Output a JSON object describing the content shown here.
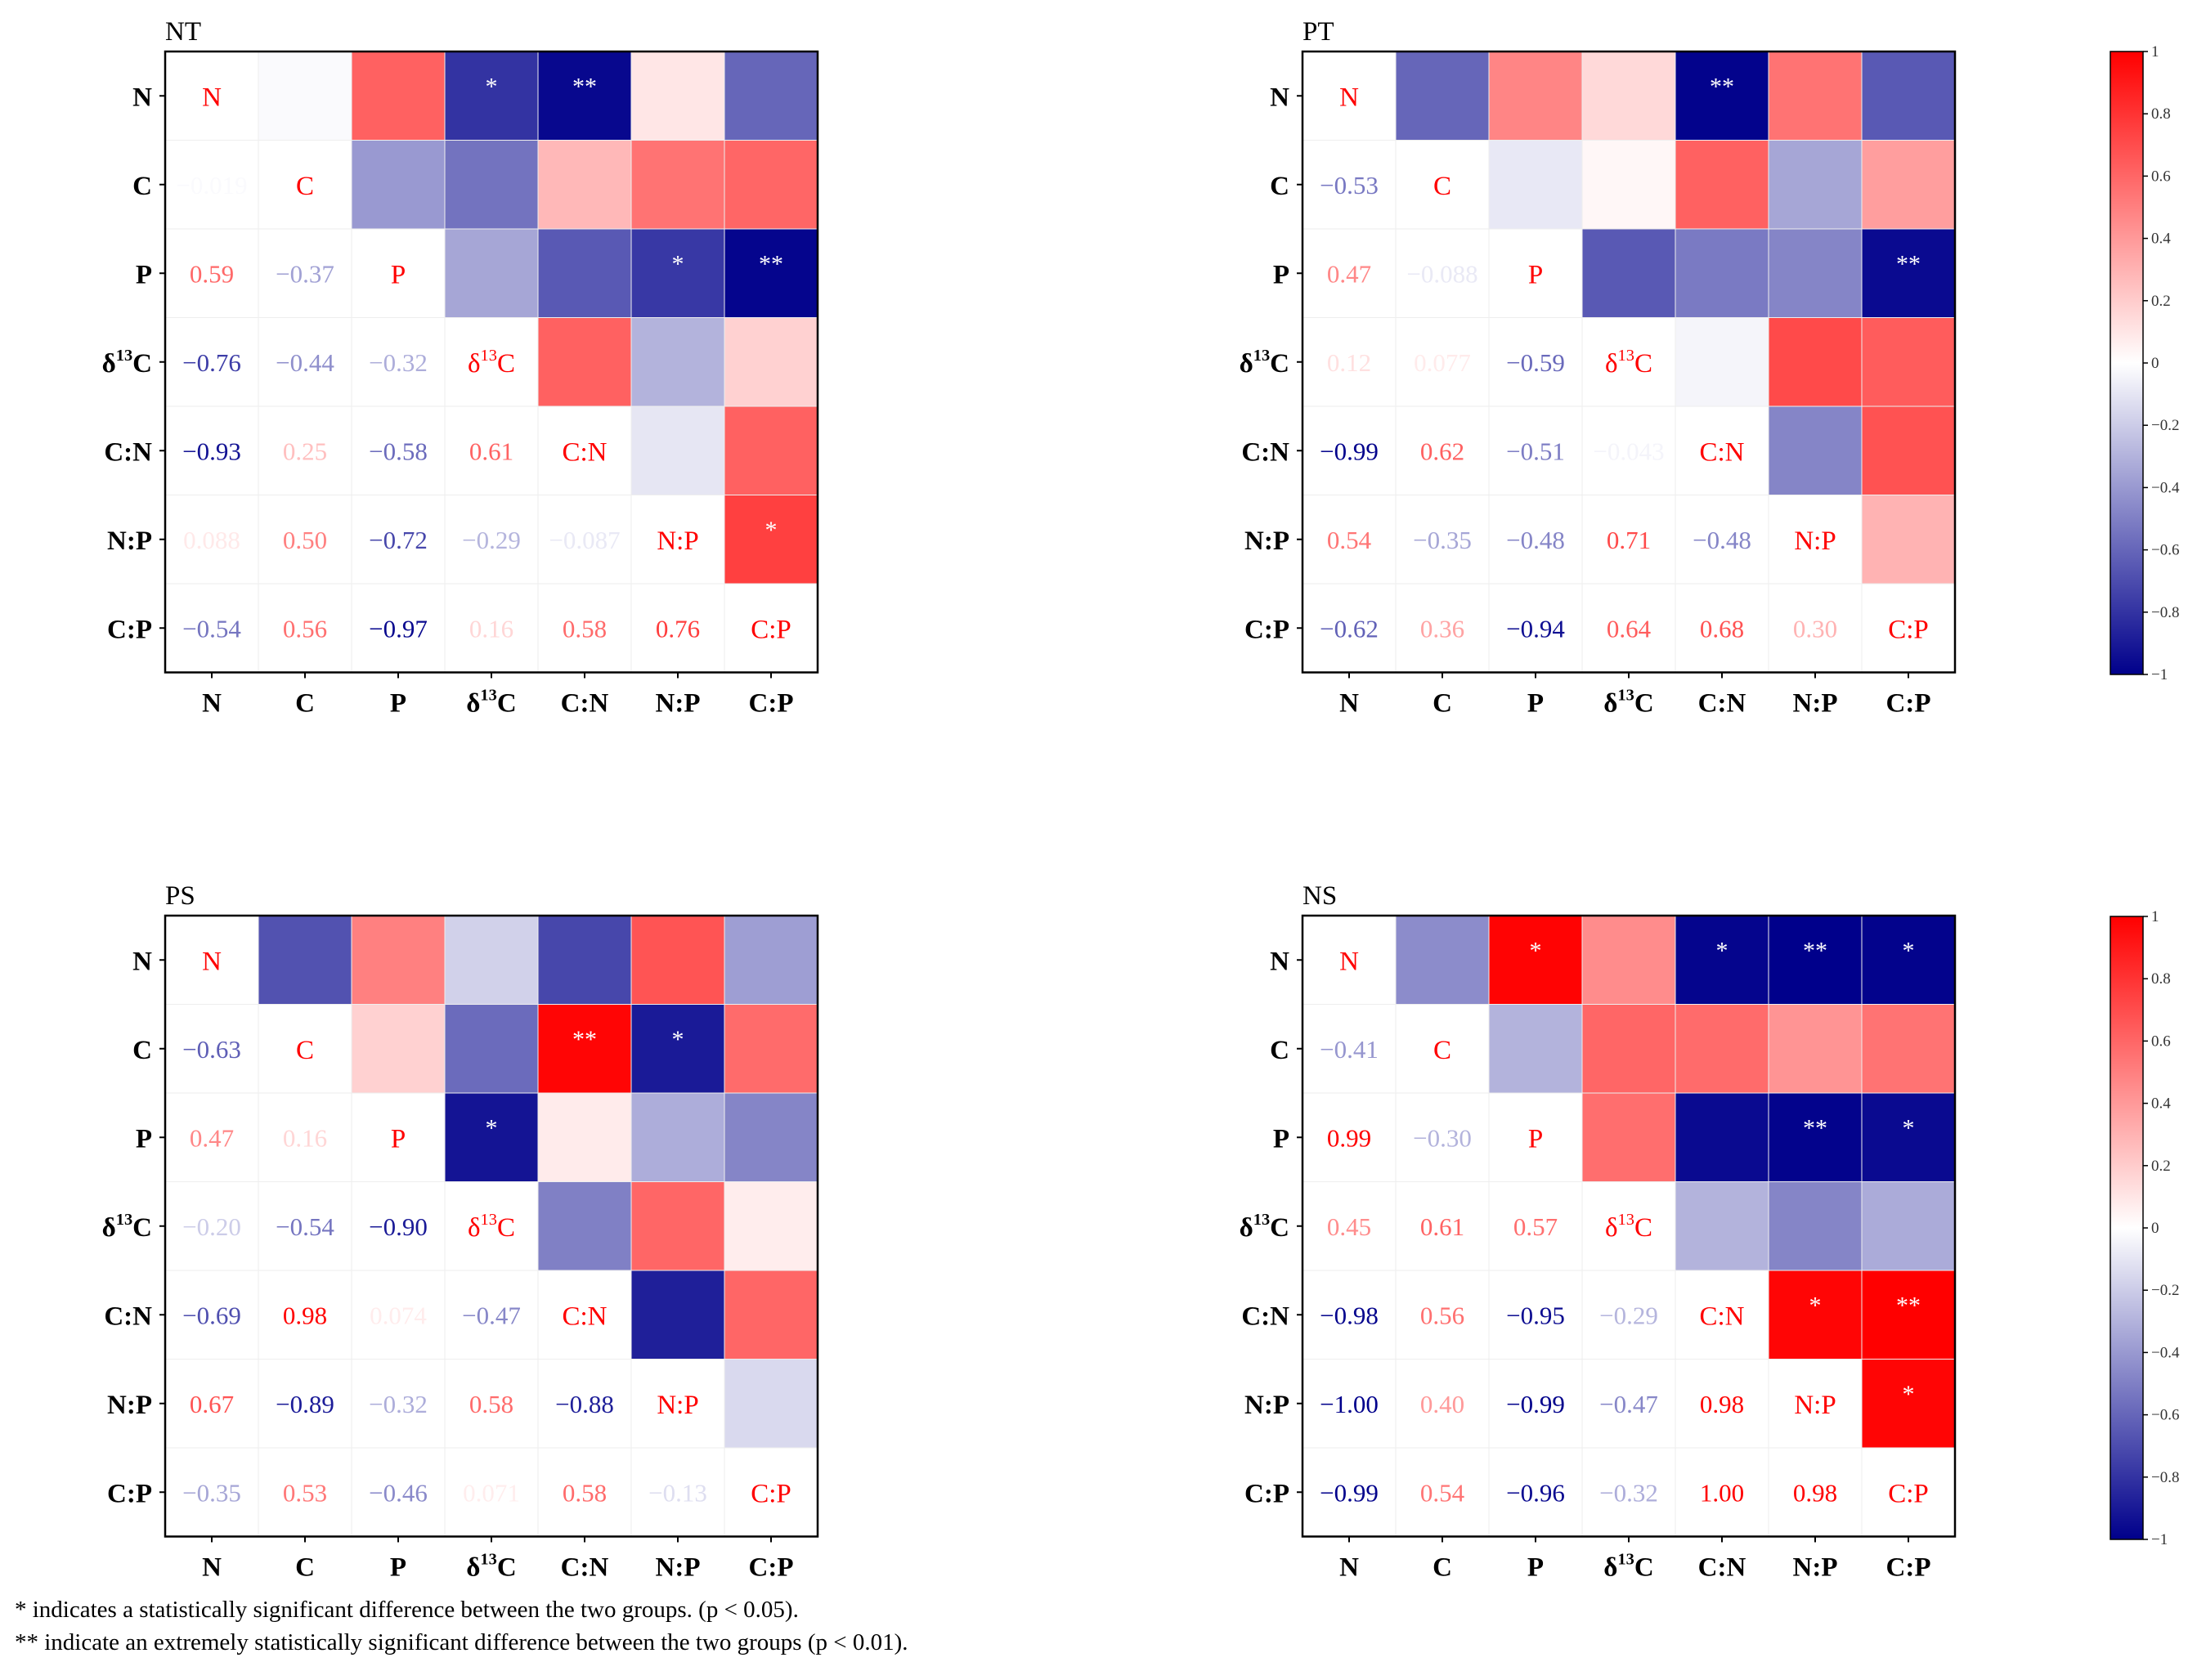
{
  "chart_data": {
    "type": "heatmap",
    "variables": [
      "N",
      "C",
      "P",
      "δ13C",
      "C:N",
      "N:P",
      "C:P"
    ],
    "color_scale": {
      "min": -1,
      "max": 1,
      "low": "#00008b",
      "mid": "#ffffff",
      "high": "#ff0000",
      "ticks": [
        {
          "value": 1,
          "label": "1"
        },
        {
          "value": 0.8,
          "label": "0.8"
        },
        {
          "value": 0.6,
          "label": "0.6"
        },
        {
          "value": 0.4,
          "label": "0.4"
        },
        {
          "value": 0.2,
          "label": "0.2"
        },
        {
          "value": 0,
          "label": "0"
        },
        {
          "value": -0.2,
          "label": "−0.2"
        },
        {
          "value": -0.4,
          "label": "−0.4"
        },
        {
          "value": -0.6,
          "label": "−0.6"
        },
        {
          "value": -0.8,
          "label": "−0.8"
        },
        {
          "value": -1,
          "label": "−1"
        }
      ]
    },
    "panels": [
      {
        "title": "NT",
        "lower_labels": [
          [
            "",
            "",
            "",
            "",
            "",
            "",
            ""
          ],
          [
            "−0.019",
            "",
            "",
            "",
            "",
            "",
            ""
          ],
          [
            "0.59",
            "−0.37",
            "",
            "",
            "",
            "",
            ""
          ],
          [
            "−0.76",
            "−0.44",
            "−0.32",
            "",
            "",
            "",
            ""
          ],
          [
            "−0.93",
            "0.25",
            "−0.58",
            "0.61",
            "",
            "",
            ""
          ],
          [
            "0.088",
            "0.50",
            "−0.72",
            "−0.29",
            "−0.087",
            "",
            ""
          ],
          [
            "−0.54",
            "0.56",
            "−0.97",
            "0.16",
            "0.58",
            "0.76",
            ""
          ]
        ],
        "upper_values": [
          [
            null,
            -0.02,
            0.62,
            -0.8,
            -0.97,
            0.1,
            -0.6
          ],
          [
            null,
            null,
            -0.4,
            -0.55,
            0.28,
            0.55,
            0.6
          ],
          [
            null,
            null,
            null,
            -0.35,
            -0.65,
            -0.78,
            -0.98
          ],
          [
            null,
            null,
            null,
            null,
            0.62,
            -0.3,
            0.18
          ],
          [
            null,
            null,
            null,
            null,
            null,
            -0.1,
            0.62
          ],
          [
            null,
            null,
            null,
            null,
            null,
            null,
            0.75
          ],
          [
            null,
            null,
            null,
            null,
            null,
            null,
            null
          ]
        ],
        "stars": [
          [
            "",
            "",
            "",
            "*",
            "**",
            "",
            ""
          ],
          [
            "",
            "",
            "",
            "",
            "",
            "",
            ""
          ],
          [
            "",
            "",
            "",
            "",
            "",
            "*",
            "**"
          ],
          [
            "",
            "",
            "",
            "",
            "",
            "",
            ""
          ],
          [
            "",
            "",
            "",
            "",
            "",
            "",
            ""
          ],
          [
            "",
            "",
            "",
            "",
            "",
            "",
            "*"
          ],
          [
            "",
            "",
            "",
            "",
            "",
            "",
            ""
          ]
        ]
      },
      {
        "title": "PT",
        "lower_labels": [
          [
            "",
            "",
            "",
            "",
            "",
            "",
            ""
          ],
          [
            "−0.53",
            "",
            "",
            "",
            "",
            "",
            ""
          ],
          [
            "0.47",
            "−0.088",
            "",
            "",
            "",
            "",
            ""
          ],
          [
            "0.12",
            "0.077",
            "−0.59",
            "",
            "",
            "",
            ""
          ],
          [
            "−0.99",
            "0.62",
            "−0.51",
            "−0.043",
            "",
            "",
            ""
          ],
          [
            "0.54",
            "−0.35",
            "−0.48",
            "0.71",
            "−0.48",
            "",
            ""
          ],
          [
            "−0.62",
            "0.36",
            "−0.94",
            "0.64",
            "0.68",
            "0.30",
            ""
          ]
        ],
        "upper_values": [
          [
            null,
            -0.6,
            0.48,
            0.15,
            -0.99,
            0.55,
            -0.65
          ],
          [
            null,
            null,
            -0.09,
            0.03,
            0.62,
            -0.35,
            0.38
          ],
          [
            null,
            null,
            null,
            -0.65,
            -0.52,
            -0.48,
            -0.96
          ],
          [
            null,
            null,
            null,
            null,
            -0.04,
            0.71,
            0.64
          ],
          [
            null,
            null,
            null,
            null,
            null,
            -0.48,
            0.68
          ],
          [
            null,
            null,
            null,
            null,
            null,
            null,
            0.3
          ],
          [
            null,
            null,
            null,
            null,
            null,
            null,
            null
          ]
        ],
        "stars": [
          [
            "",
            "",
            "",
            "",
            "**",
            "",
            ""
          ],
          [
            "",
            "",
            "",
            "",
            "",
            "",
            ""
          ],
          [
            "",
            "",
            "",
            "",
            "",
            "",
            "**"
          ],
          [
            "",
            "",
            "",
            "",
            "",
            "",
            ""
          ],
          [
            "",
            "",
            "",
            "",
            "",
            "",
            ""
          ],
          [
            "",
            "",
            "",
            "",
            "",
            "",
            ""
          ],
          [
            "",
            "",
            "",
            "",
            "",
            "",
            ""
          ]
        ]
      },
      {
        "title": "PS",
        "lower_labels": [
          [
            "",
            "",
            "",
            "",
            "",
            "",
            ""
          ],
          [
            "−0.63",
            "",
            "",
            "",
            "",
            "",
            ""
          ],
          [
            "0.47",
            "0.16",
            "",
            "",
            "",
            "",
            ""
          ],
          [
            "−0.20",
            "−0.54",
            "−0.90",
            "",
            "",
            "",
            ""
          ],
          [
            "−0.69",
            "0.98",
            "0.074",
            "−0.47",
            "",
            "",
            ""
          ],
          [
            "0.67",
            "−0.89",
            "−0.32",
            "0.58",
            "−0.88",
            "",
            ""
          ],
          [
            "−0.35",
            "0.53",
            "−0.46",
            "0.071",
            "0.58",
            "−0.13",
            ""
          ]
        ],
        "upper_values": [
          [
            null,
            -0.68,
            0.5,
            -0.18,
            -0.72,
            0.67,
            -0.38
          ],
          [
            null,
            null,
            0.18,
            -0.58,
            0.98,
            -0.9,
            0.58
          ],
          [
            null,
            null,
            null,
            -0.92,
            0.08,
            -0.32,
            -0.48
          ],
          [
            null,
            null,
            null,
            null,
            -0.5,
            0.6,
            0.07
          ],
          [
            null,
            null,
            null,
            null,
            null,
            -0.88,
            0.6
          ],
          [
            null,
            null,
            null,
            null,
            null,
            null,
            -0.15
          ],
          [
            null,
            null,
            null,
            null,
            null,
            null,
            null
          ]
        ],
        "stars": [
          [
            "",
            "",
            "",
            "",
            "",
            "",
            ""
          ],
          [
            "",
            "",
            "",
            "",
            "**",
            "*",
            ""
          ],
          [
            "",
            "",
            "",
            "*",
            "",
            "",
            ""
          ],
          [
            "",
            "",
            "",
            "",
            "",
            "",
            ""
          ],
          [
            "",
            "",
            "",
            "",
            "",
            "",
            ""
          ],
          [
            "",
            "",
            "",
            "",
            "",
            "",
            ""
          ],
          [
            "",
            "",
            "",
            "",
            "",
            "",
            ""
          ]
        ]
      },
      {
        "title": "NS",
        "lower_labels": [
          [
            "",
            "",
            "",
            "",
            "",
            "",
            ""
          ],
          [
            "−0.41",
            "",
            "",
            "",
            "",
            "",
            ""
          ],
          [
            "0.99",
            "−0.30",
            "",
            "",
            "",
            "",
            ""
          ],
          [
            "0.45",
            "0.61",
            "0.57",
            "",
            "",
            "",
            ""
          ],
          [
            "−0.98",
            "0.56",
            "−0.95",
            "−0.29",
            "",
            "",
            ""
          ],
          [
            "−1.00",
            "0.40",
            "−0.99",
            "−0.47",
            "0.98",
            "",
            ""
          ],
          [
            "−0.99",
            "0.54",
            "−0.96",
            "−0.32",
            "1.00",
            "0.98",
            ""
          ]
        ],
        "upper_values": [
          [
            null,
            -0.45,
            0.99,
            0.45,
            -0.98,
            -1.0,
            -0.99
          ],
          [
            null,
            null,
            -0.3,
            0.6,
            0.58,
            0.42,
            0.55
          ],
          [
            null,
            null,
            null,
            0.57,
            -0.96,
            -0.99,
            -0.96
          ],
          [
            null,
            null,
            null,
            null,
            -0.3,
            -0.48,
            -0.33
          ],
          [
            null,
            null,
            null,
            null,
            null,
            0.98,
            1.0
          ],
          [
            null,
            null,
            null,
            null,
            null,
            null,
            0.98
          ],
          [
            null,
            null,
            null,
            null,
            null,
            null,
            null
          ]
        ],
        "stars": [
          [
            "",
            "",
            "*",
            "",
            "*",
            "**",
            "*"
          ],
          [
            "",
            "",
            "",
            "",
            "",
            "",
            ""
          ],
          [
            "",
            "",
            "",
            "",
            "",
            "**",
            "*"
          ],
          [
            "",
            "",
            "",
            "",
            "",
            "",
            ""
          ],
          [
            "",
            "",
            "",
            "",
            "",
            "*",
            "**"
          ],
          [
            "",
            "",
            "",
            "",
            "",
            "",
            "*"
          ],
          [
            "",
            "",
            "",
            "",
            "",
            "",
            ""
          ]
        ]
      }
    ]
  },
  "footnotes": {
    "single": "* indicates a statistically significant difference between the two groups. (p < 0.05).",
    "double": "** indicate an extremely statistically significant difference between the two groups (p < 0.01)."
  }
}
